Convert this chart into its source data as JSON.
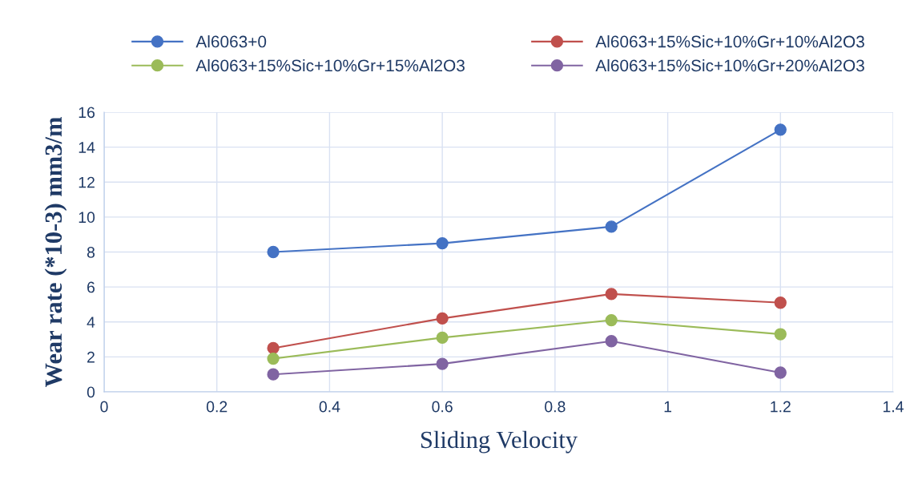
{
  "chart_data": {
    "type": "line",
    "xlabel": "Sliding Velocity",
    "ylabel": "Wear rate (*10-3) mm3/m",
    "x": [
      0.3,
      0.6,
      0.9,
      1.2
    ],
    "series": [
      {
        "name": "Al6063+0",
        "color": "#4472c4",
        "values": [
          8.0,
          8.5,
          9.45,
          15.0
        ]
      },
      {
        "name": "Al6063+15%Sic+10%Gr+10%Al2O3",
        "color": "#c0504d",
        "values": [
          2.5,
          4.2,
          5.6,
          5.1
        ]
      },
      {
        "name": "Al6063+15%Sic+10%Gr+15%Al2O3",
        "color": "#9bbb59",
        "values": [
          1.9,
          3.1,
          4.1,
          3.3
        ]
      },
      {
        "name": "Al6063+15%Sic+10%Gr+20%Al2O3",
        "color": "#8064a2",
        "values": [
          1.0,
          1.6,
          2.9,
          1.1
        ]
      }
    ],
    "xlim": [
      0,
      1.4
    ],
    "xticks": [
      0,
      0.2,
      0.4,
      0.6,
      0.8,
      1,
      1.2,
      1.4
    ],
    "ylim": [
      0,
      16
    ],
    "yticks": [
      0,
      2,
      4,
      6,
      8,
      10,
      12,
      14,
      16
    ],
    "grid": true,
    "legend": "top",
    "marker": "circle",
    "line_style": "solid"
  }
}
